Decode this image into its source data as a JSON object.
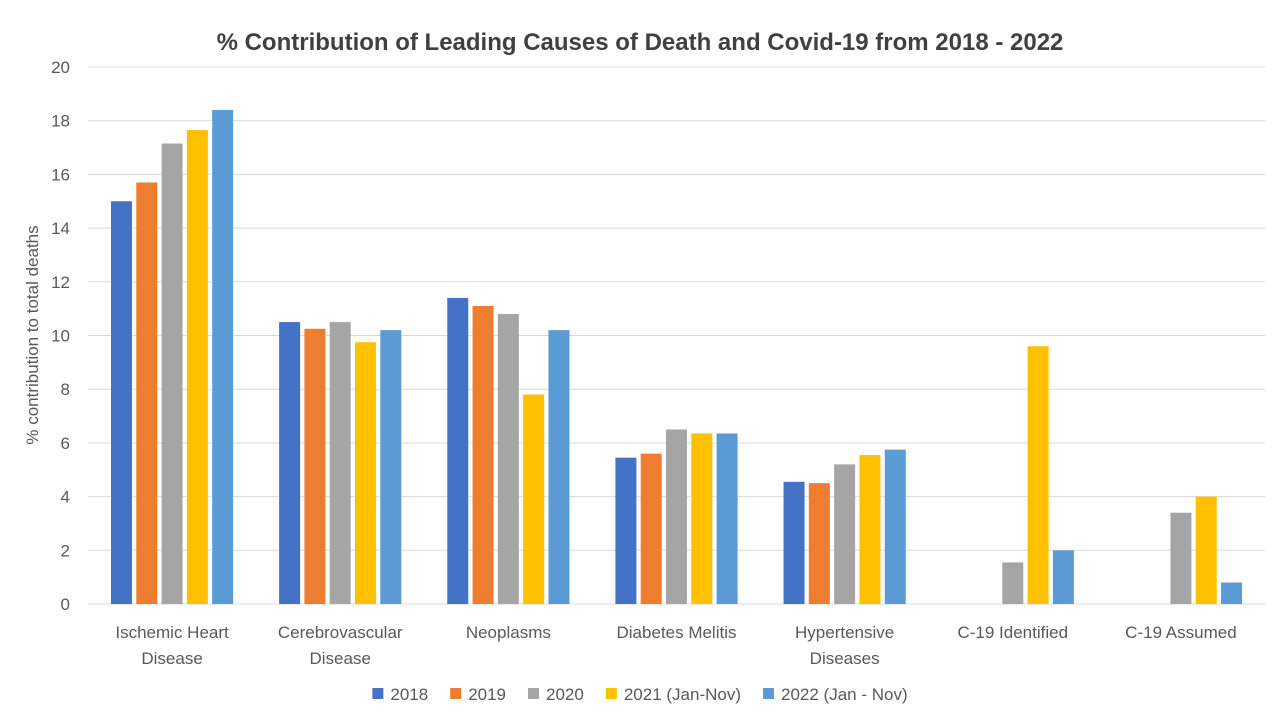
{
  "chart_data": {
    "type": "bar",
    "title": "% Contribution of Leading Causes of Death and Covid-19 from 2018 - 2022",
    "ylabel": "% contribution to total deaths",
    "xlabel": "",
    "ylim": [
      0,
      20
    ],
    "ytick_step": 2,
    "grid": true,
    "legend_position": "bottom",
    "categories": [
      [
        "Ischemic Heart",
        "Disease"
      ],
      [
        "Cerebrovascular",
        "Disease"
      ],
      [
        "Neoplasms"
      ],
      [
        "Diabetes Melitis"
      ],
      [
        "Hypertensive",
        "Diseases"
      ],
      [
        "C-19 Identified"
      ],
      [
        "C-19 Assumed"
      ]
    ],
    "series": [
      {
        "name": "2018",
        "color": "#4472C4",
        "values": [
          15.0,
          10.5,
          11.4,
          5.45,
          4.55,
          null,
          null
        ]
      },
      {
        "name": "2019",
        "color": "#ED7D31",
        "values": [
          15.7,
          10.25,
          11.1,
          5.6,
          4.5,
          null,
          null
        ]
      },
      {
        "name": "2020",
        "color": "#A5A5A5",
        "values": [
          17.15,
          10.5,
          10.8,
          6.5,
          5.2,
          1.55,
          3.4
        ]
      },
      {
        "name": "2021 (Jan-Nov)",
        "color": "#FFC000",
        "values": [
          17.65,
          9.75,
          7.8,
          6.35,
          5.55,
          9.6,
          4.0
        ]
      },
      {
        "name": "2022 (Jan - Nov)",
        "color": "#5B9BD5",
        "values": [
          18.4,
          10.2,
          10.2,
          6.35,
          5.75,
          2.0,
          0.8
        ]
      }
    ]
  }
}
